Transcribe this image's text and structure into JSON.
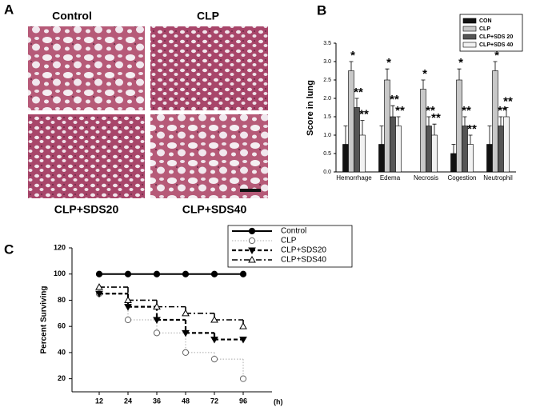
{
  "panel_a": {
    "panel_label": "A",
    "images": [
      {
        "label": "Control"
      },
      {
        "label": "CLP"
      },
      {
        "label": "CLP+SDS20"
      },
      {
        "label": "CLP+SDS40"
      }
    ]
  },
  "chart_data": [
    {
      "type": "bar",
      "panel_label": "B",
      "ylabel": "Score in lung",
      "categories": [
        "Hemorrhage",
        "Edema",
        "Necrosis",
        "Cogestion",
        "Neutrophil"
      ],
      "ylim": [
        0,
        3.5
      ],
      "yticks": [
        {
          "value": 0,
          "label": "0.0"
        },
        0.5,
        {
          "value": 1,
          "label": "1.0"
        },
        1.5,
        {
          "value": 2,
          "label": "2.0"
        },
        2.5,
        {
          "value": 3,
          "label": "3.0"
        },
        3.5
      ],
      "legend": "top-right",
      "series": [
        {
          "name": "CON",
          "color": "#111111",
          "values": [
            0.75,
            0.75,
            0,
            0.5,
            0.75
          ],
          "errors": [
            0.5,
            0.5,
            0,
            0.25,
            0.5
          ]
        },
        {
          "name": "CLP",
          "color": "#c8c8c8",
          "values": [
            2.75,
            2.5,
            2.25,
            2.5,
            2.75
          ],
          "errors": [
            0.25,
            0.3,
            0.25,
            0.3,
            0.25
          ],
          "markers": [
            "*",
            "*",
            "*",
            "*",
            "*"
          ]
        },
        {
          "name": "CLP+SDS 20",
          "color": "#555555",
          "values": [
            1.75,
            1.5,
            1.25,
            1.25,
            1.25
          ],
          "errors": [
            0.25,
            0.3,
            0.25,
            0.25,
            0.25
          ],
          "markers": [
            "**",
            "**",
            "**",
            "**",
            "**"
          ]
        },
        {
          "name": "CLP+SDS 40",
          "color": "#f2f2f2",
          "values": [
            1.0,
            1.25,
            1.0,
            0.75,
            1.5
          ],
          "errors": [
            0.4,
            0.25,
            0.3,
            0.25,
            0.25
          ],
          "markers": [
            "**",
            "**",
            "**",
            "**",
            "**"
          ]
        }
      ]
    },
    {
      "type": "line",
      "panel_label": "C",
      "ylabel": "Percent Surviving",
      "xlabel": "(h)",
      "categories": [
        "12",
        "24",
        "36",
        "48",
        "72",
        "96"
      ],
      "ylim": [
        10,
        120
      ],
      "yticks": [
        20,
        40,
        60,
        80,
        100,
        120
      ],
      "legend": "top-right",
      "series": [
        {
          "name": "Control",
          "color": "#000000",
          "line_style": "solid",
          "marker": "filled-circle",
          "values": [
            100,
            100,
            100,
            100,
            100,
            100
          ]
        },
        {
          "name": "CLP",
          "color": "#aaaaaa",
          "line_style": "dotted",
          "marker": "open-circle",
          "values": [
            85,
            65,
            55,
            40,
            35,
            20
          ]
        },
        {
          "name": "CLP+SDS20",
          "color": "#000000",
          "line_style": "dashed",
          "marker": "filled-triangle-down",
          "values": [
            85,
            75,
            65,
            55,
            50,
            50
          ]
        },
        {
          "name": "CLP+SDS40",
          "color": "#000000",
          "line_style": "dashdot",
          "marker": "open-triangle-up",
          "values": [
            90,
            80,
            75,
            70,
            65,
            60
          ]
        }
      ]
    }
  ]
}
